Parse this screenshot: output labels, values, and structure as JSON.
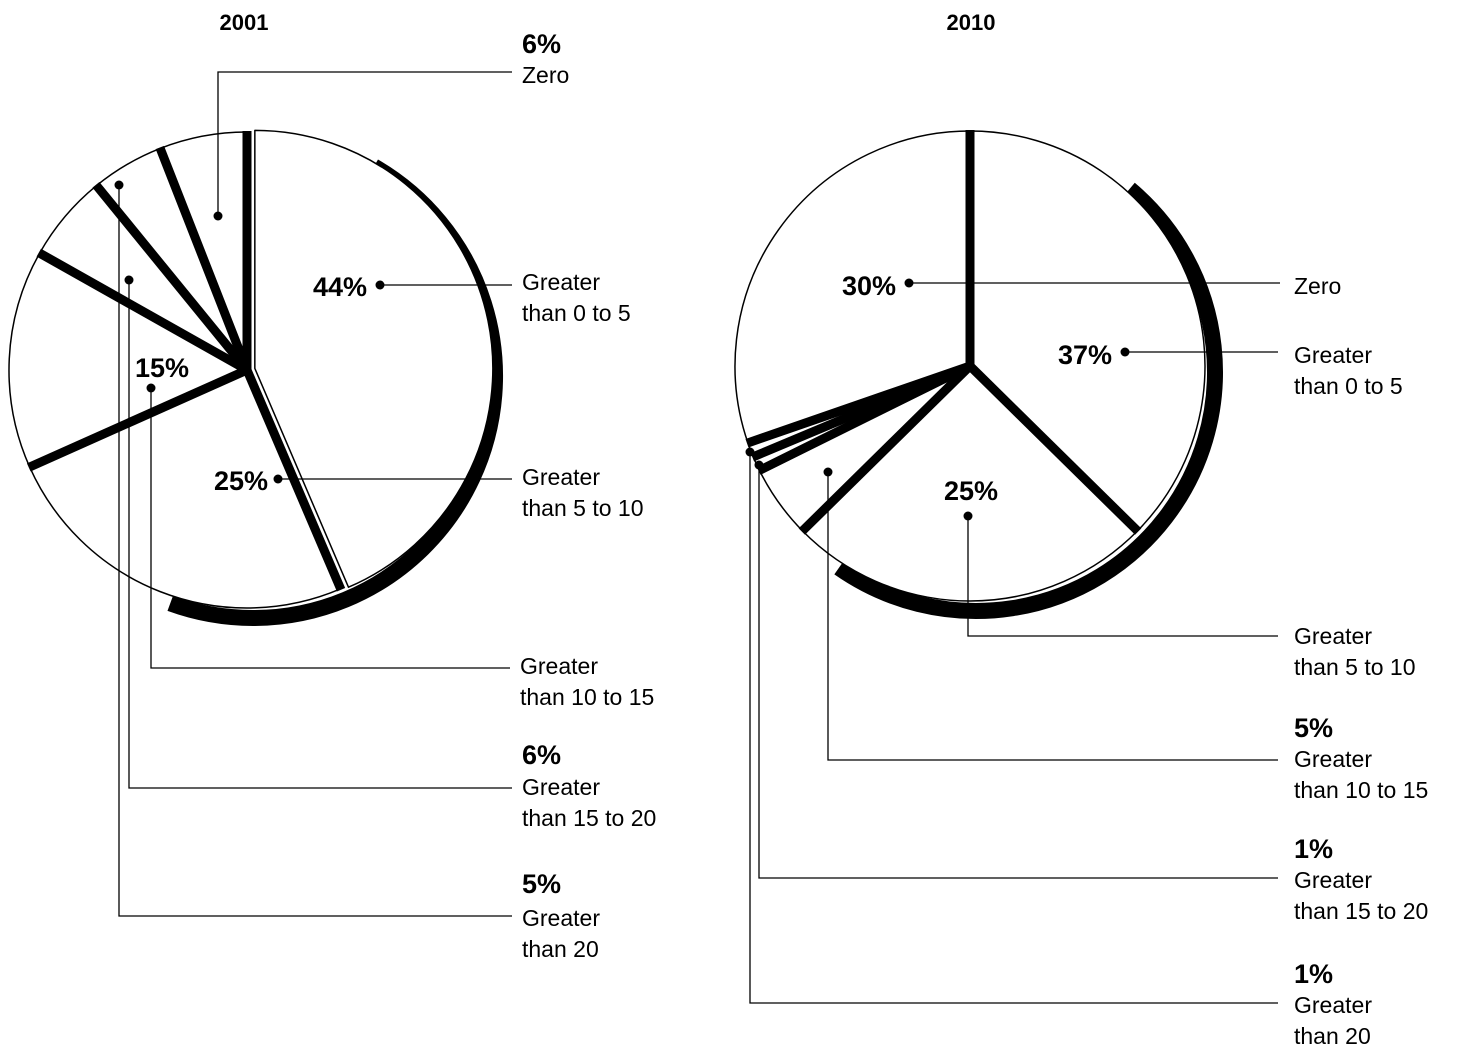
{
  "chart_data": [
    {
      "type": "pie",
      "title": "2001",
      "slices": [
        {
          "label": "Zero",
          "value": 6,
          "value_label": "6%"
        },
        {
          "label": "Greater than 0 to 5",
          "value": 44,
          "value_label": "44%"
        },
        {
          "label": "Greater than 5 to 10",
          "value": 25,
          "value_label": "25%"
        },
        {
          "label": "Greater than 10 to 15",
          "value": 15,
          "value_label": "15%"
        },
        {
          "label": "Greater than 15 to 20",
          "value": 6,
          "value_label": "6%"
        },
        {
          "label": "Greater than 20",
          "value": 5,
          "value_label": "5%"
        }
      ],
      "label_lines": {
        "Zero": [
          "Zero"
        ],
        "Greater than 0 to 5": [
          "Greater",
          "than 0 to 5"
        ],
        "Greater than 5 to 10": [
          "Greater",
          "than 5 to 10"
        ],
        "Greater than 10 to 15": [
          "Greater",
          "than 10 to 15"
        ],
        "Greater than 15 to 20": [
          "Greater",
          "than 15 to 20"
        ],
        "Greater than 20": [
          "Greater",
          "than 20"
        ]
      }
    },
    {
      "type": "pie",
      "title": "2010",
      "slices": [
        {
          "label": "Zero",
          "value": 30,
          "value_label": "30%"
        },
        {
          "label": "Greater than 0 to 5",
          "value": 37,
          "value_label": "37%"
        },
        {
          "label": "Greater than 5 to 10",
          "value": 25,
          "value_label": "25%"
        },
        {
          "label": "Greater than 10 to 15",
          "value": 5,
          "value_label": "5%"
        },
        {
          "label": "Greater than 15 to 20",
          "value": 1,
          "value_label": "1%"
        },
        {
          "label": "Greater than 20",
          "value": 1,
          "value_label": "1%"
        }
      ],
      "label_lines": {
        "Zero": [
          "Zero"
        ],
        "Greater than 0 to 5": [
          "Greater",
          "than 0 to 5"
        ],
        "Greater than 5 to 10": [
          "Greater",
          "than 5 to 10"
        ],
        "Greater than 10 to 15": [
          "Greater",
          "than 10 to 15"
        ],
        "Greater than 15 to 20": [
          "Greater",
          "than 15 to 20"
        ],
        "Greater than 20": [
          "Greater",
          "than 20"
        ]
      }
    }
  ]
}
